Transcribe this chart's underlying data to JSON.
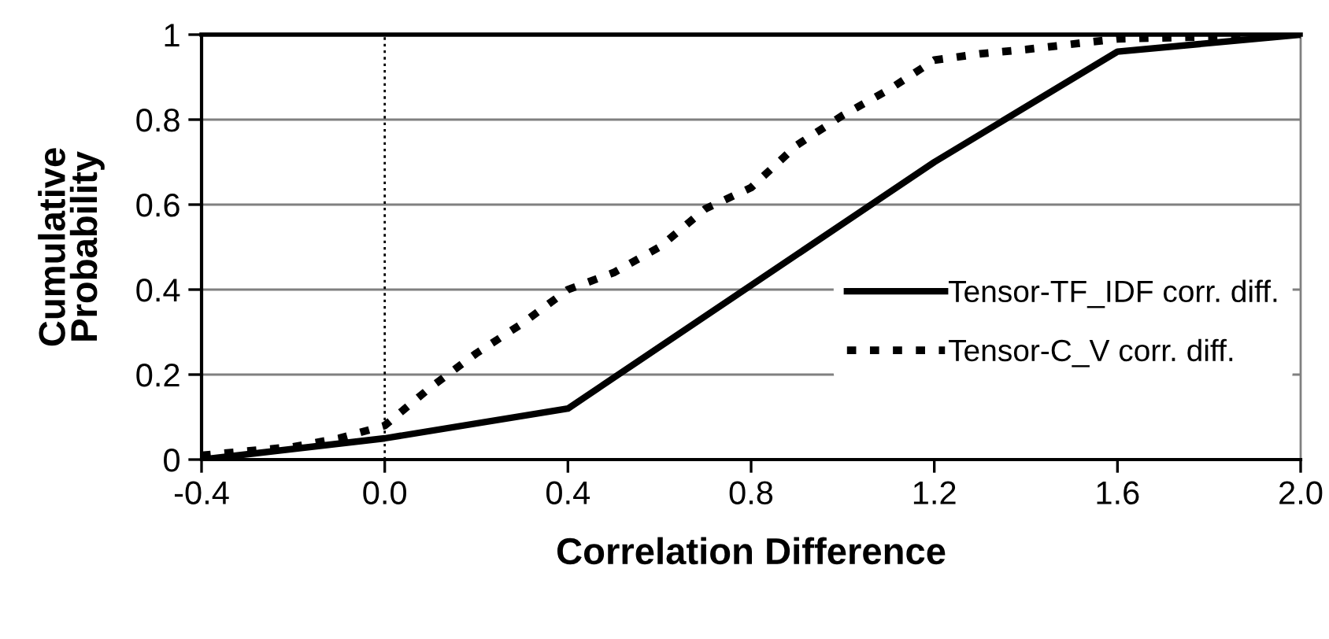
{
  "chart_data": {
    "type": "line",
    "xlabel": "Correlation Difference",
    "ylabel": "Cumulative Probability",
    "series": [
      {
        "name": "Tensor-TF_IDF corr. diff.",
        "color": "#000000",
        "line_style": "solid",
        "x": [
          -0.4,
          0.0,
          0.4,
          1.2,
          1.6,
          2.0
        ],
        "values": [
          0.0,
          0.05,
          0.12,
          0.7,
          0.96,
          1.0
        ]
      },
      {
        "name": "Tensor-C_V corr. diff.",
        "color": "#000000",
        "line_style": "dotted",
        "x": [
          -0.4,
          -0.3,
          -0.2,
          -0.1,
          0.0,
          0.1,
          0.2,
          0.3,
          0.4,
          0.5,
          0.6,
          0.7,
          0.8,
          0.9,
          1.0,
          1.1,
          1.2,
          1.3,
          1.4,
          1.6,
          2.0
        ],
        "values": [
          0.01,
          0.02,
          0.03,
          0.05,
          0.08,
          0.17,
          0.25,
          0.32,
          0.4,
          0.44,
          0.5,
          0.59,
          0.64,
          0.74,
          0.81,
          0.87,
          0.94,
          0.955,
          0.965,
          0.99,
          1.0
        ]
      }
    ],
    "xlim": [
      -0.4,
      2.0
    ],
    "xticks": [
      -0.4,
      {
        "value": 0,
        "label": "0.0"
      },
      0.4,
      0.8,
      1.2,
      1.6,
      {
        "value": 2,
        "label": "2.0"
      }
    ],
    "ylim": [
      0,
      1
    ],
    "yticks": [
      0,
      0.2,
      0.4,
      0.6,
      0.8,
      1
    ],
    "grid": "y",
    "legend": "right",
    "marker": "none",
    "ref_lines": [
      {
        "axis": "x",
        "value": 0,
        "line_style": "dotted",
        "color": "#000000"
      }
    ]
  }
}
